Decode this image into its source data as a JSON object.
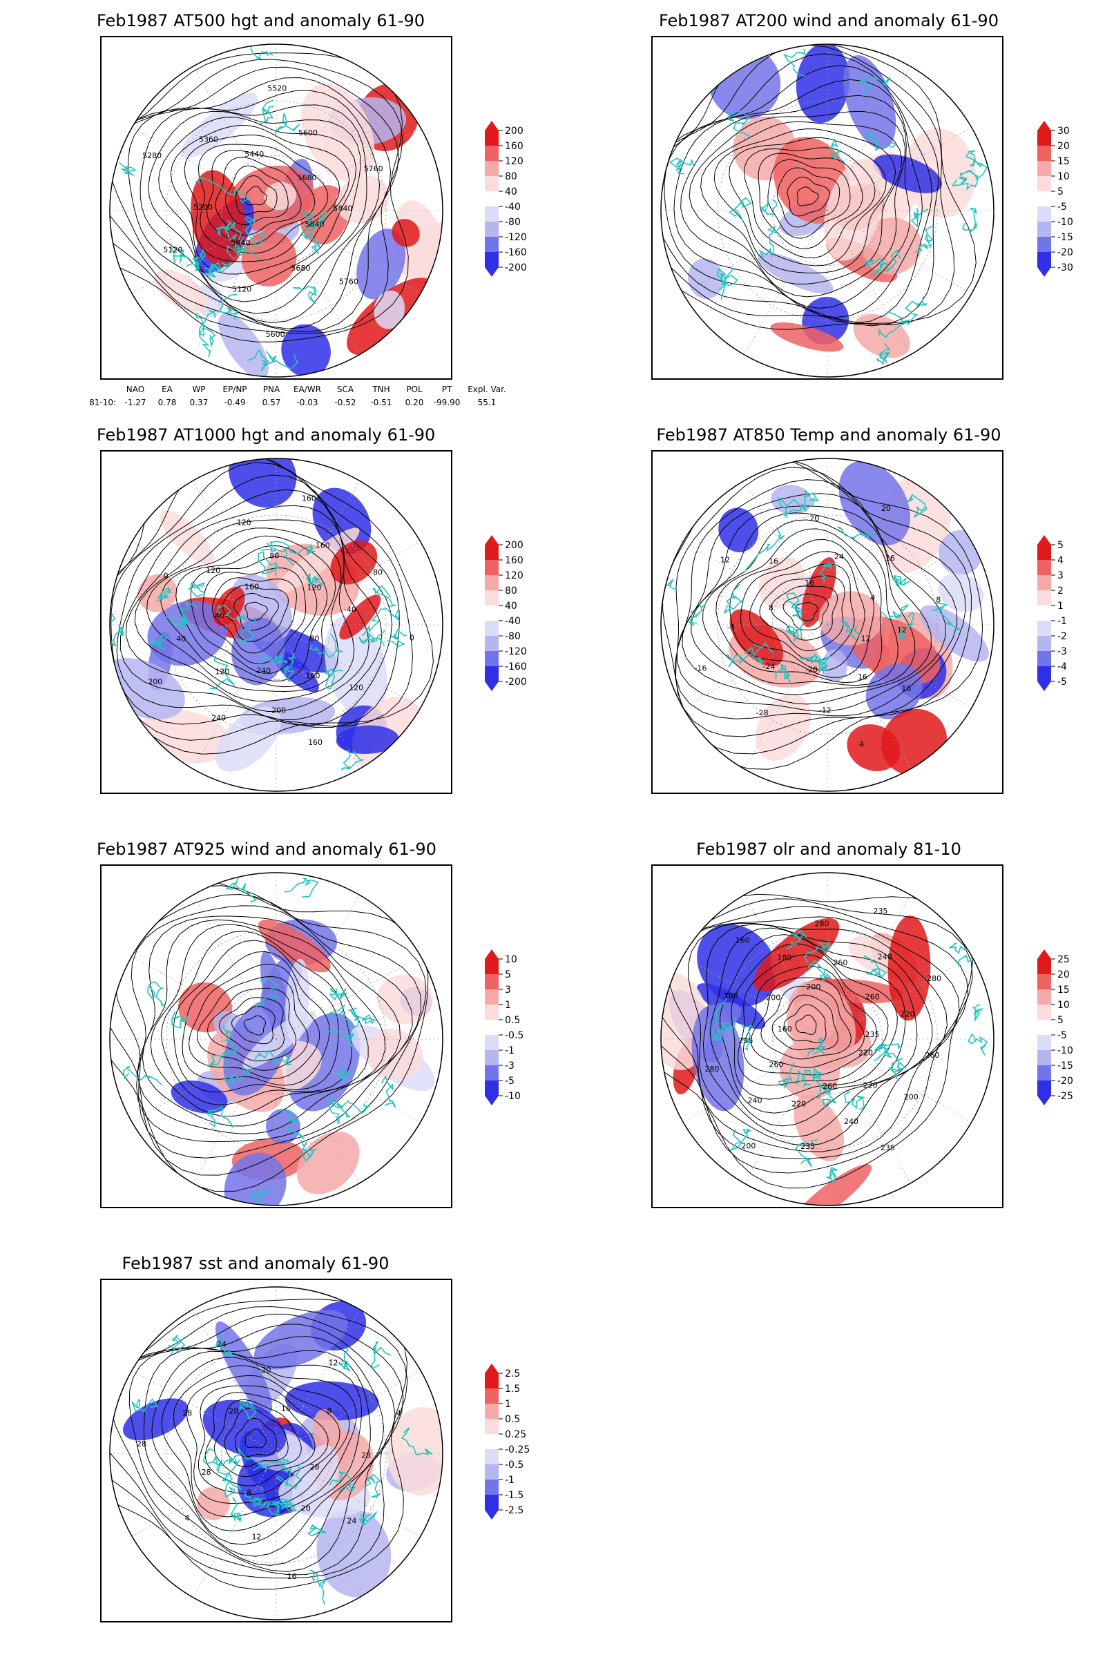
{
  "palette": {
    "red_deep": "#e0191b",
    "red_mid": "#ee6262",
    "red_light": "#f6a9a9",
    "red_pale": "#fbdcdc",
    "blue_pale": "#dcdcf8",
    "blue_light": "#b5b5f0",
    "blue_mid": "#7474ea",
    "blue_deep": "#2f2fe6",
    "coast": "#1ec6c0"
  },
  "panels": [
    {
      "id": "p500",
      "title": "Feb1987 AT500 hgt and anomaly 61-90",
      "colorbar": [
        "200",
        "160",
        "120",
        "80",
        "40",
        "-40",
        "-80",
        "-120",
        "-160",
        "-200"
      ],
      "contour_labels": [
        "5840",
        "5760",
        "5680",
        "5600",
        "5120",
        "5040",
        "5120",
        "5200",
        "5280",
        "5360",
        "5440",
        "5520",
        "5600",
        "5680",
        "5760",
        "5840"
      ]
    },
    {
      "id": "p200",
      "title": "Feb1987 AT200 wind and anomaly 61-90",
      "colorbar": [
        "30",
        "20",
        "15",
        "10",
        "5",
        "-5",
        "-10",
        "-15",
        "-20",
        "-30"
      ],
      "contour_labels": []
    },
    {
      "id": "p1000",
      "title": "Feb1987 AT1000 hgt and anomaly 61-90",
      "colorbar": [
        "200",
        "160",
        "120",
        "80",
        "40",
        "-40",
        "-80",
        "-120",
        "-160",
        "-200"
      ],
      "contour_labels": [
        "80",
        "120",
        "160",
        "160",
        "200",
        "240",
        "240",
        "120",
        "200",
        "40",
        "-40",
        "0",
        "120",
        "160",
        "120",
        "80",
        "160",
        "160",
        "120",
        "80",
        "-40",
        "0"
      ]
    },
    {
      "id": "p850",
      "title": "Feb1987 AT850 Temp and anomaly 61-90",
      "colorbar": [
        "5",
        "4",
        "3",
        "2",
        "1",
        "-1",
        "-2",
        "-3",
        "-4",
        "-5"
      ],
      "contour_labels": [
        "12",
        "16",
        "16",
        "4",
        "-12",
        "-20",
        "-28",
        "-24",
        "-16",
        "-8",
        "8",
        "12",
        "16",
        "16",
        "20",
        "24",
        "20",
        "16",
        "4",
        "8",
        "12"
      ]
    },
    {
      "id": "p925",
      "title": "Feb1987 AT925 wind and anomaly 61-90",
      "colorbar": [
        "10",
        "5",
        "3",
        "1",
        "0.5",
        "-0.5",
        "-1",
        "-3",
        "-5",
        "-10"
      ],
      "contour_labels": []
    },
    {
      "id": "polr",
      "title": "Feb1987 olr and anomaly 81-10",
      "colorbar": [
        "25",
        "20",
        "15",
        "10",
        "5",
        "-5",
        "-10",
        "-15",
        "-20",
        "-25"
      ],
      "contour_labels": [
        "220",
        "200",
        "220",
        "235",
        "240",
        "260",
        "235",
        "220",
        "200",
        "240",
        "260",
        "280",
        "235",
        "160",
        "180",
        "200",
        "160",
        "180",
        "200",
        "280",
        "260",
        "235",
        "240",
        "260",
        "280",
        "220",
        "235",
        "260"
      ]
    },
    {
      "id": "psst",
      "title": "Feb1987 sst and anomaly 61-90",
      "colorbar": [
        "2.5",
        "1.5",
        "1",
        "0.5",
        "0.25",
        "-0.25",
        "-0.5",
        "-1",
        "-1.5",
        "-2.5"
      ],
      "contour_labels": [
        "28",
        "24",
        "20",
        "16",
        "12",
        "8",
        "4",
        "28",
        "28",
        "28",
        "28",
        "24",
        "20",
        "16",
        "12",
        "8",
        "4",
        "28"
      ]
    }
  ],
  "index_table": {
    "headers": [
      "NAO",
      "EA",
      "WP",
      "EP/NP",
      "PNA",
      "EA/WR",
      "SCA",
      "TNH",
      "POL",
      "PT",
      "Expl. Var."
    ],
    "row_label": "81-10:",
    "values": [
      "-1.27",
      "0.78",
      "0.37",
      "-0.49",
      "0.57",
      "-0.03",
      "-0.52",
      "-0.51",
      "0.20",
      "-99.90",
      "55.1"
    ]
  }
}
